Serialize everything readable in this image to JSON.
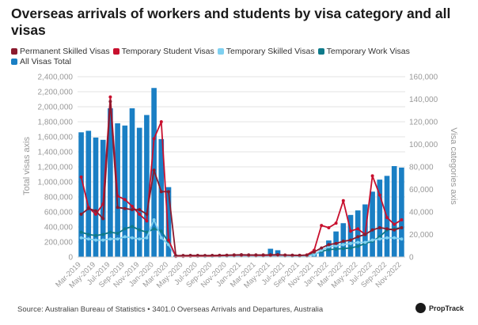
{
  "title": "Overseas arrivals of workers and students by visa category and all visas",
  "source": "Source: Australian Bureau of Statistics • 3401.0 Overseas Arrivals and Departures, Australia",
  "brand": "PropTrack",
  "chart_data": {
    "type": "bar+line",
    "title": "Overseas arrivals of workers and students by visa category and all visas",
    "y_left_label": "Total visas axis",
    "y_right_label": "Visa categories axis",
    "y_left_ticks": [
      "0",
      "200,000",
      "400,000",
      "600,000",
      "800,000",
      "1,000,000",
      "1,200,000",
      "1,400,000",
      "1,600,000",
      "1,800,000",
      "2,000,000",
      "2,200,000",
      "2,400,000"
    ],
    "y_right_ticks": [
      "0",
      "20,000",
      "40,000",
      "60,000",
      "80,000",
      "100,000",
      "120,000",
      "140,000",
      "160,000"
    ],
    "ylim_left": [
      0,
      2400000
    ],
    "ylim_right": [
      0,
      160000
    ],
    "x_tick_labels": [
      "Mar-2019",
      "May-2019",
      "Jul-2019",
      "Sep-2019",
      "Nov-2019",
      "Jan-2020",
      "Mar-2020",
      "May-2020",
      "Jul-2020",
      "Sep-2020",
      "Nov-2020",
      "Jan-2021",
      "Mar-2021",
      "May-2021",
      "Jul-2021",
      "Sep-2021",
      "Nov-2021",
      "Jan-2022",
      "Mar-2022",
      "May-2022",
      "Jul-2022",
      "Sep-2022",
      "Nov-2022"
    ],
    "months": [
      "Mar-2019",
      "Apr-2019",
      "May-2019",
      "Jun-2019",
      "Jul-2019",
      "Aug-2019",
      "Sep-2019",
      "Oct-2019",
      "Nov-2019",
      "Dec-2019",
      "Jan-2020",
      "Feb-2020",
      "Mar-2020",
      "Apr-2020",
      "May-2020",
      "Jun-2020",
      "Jul-2020",
      "Aug-2020",
      "Sep-2020",
      "Oct-2020",
      "Nov-2020",
      "Dec-2020",
      "Jan-2021",
      "Feb-2021",
      "Mar-2021",
      "Apr-2021",
      "May-2021",
      "Jun-2021",
      "Jul-2021",
      "Aug-2021",
      "Sep-2021",
      "Oct-2021",
      "Nov-2021",
      "Dec-2021",
      "Jan-2022",
      "Feb-2022",
      "Mar-2022",
      "Apr-2022",
      "May-2022",
      "Jun-2022",
      "Jul-2022",
      "Aug-2022",
      "Sep-2022",
      "Oct-2022",
      "Nov-2022"
    ],
    "bars": {
      "name": "All Visas Total",
      "axis": "left",
      "color": "#1a7fc4",
      "values": [
        1660000,
        1680000,
        1590000,
        1560000,
        1980000,
        1780000,
        1750000,
        1980000,
        1720000,
        1890000,
        2250000,
        1570000,
        930000,
        20000,
        20000,
        25000,
        25000,
        20000,
        20000,
        20000,
        25000,
        30000,
        30000,
        25000,
        25000,
        25000,
        110000,
        90000,
        30000,
        20000,
        20000,
        20000,
        40000,
        90000,
        220000,
        340000,
        450000,
        560000,
        620000,
        700000,
        870000,
        1030000,
        1080000,
        1210000,
        1190000
      ]
    },
    "series": [
      {
        "name": "Permanent Skilled Visas",
        "axis": "right",
        "color": "#8b1a2e",
        "values": [
          38000,
          43000,
          41000,
          34000,
          138000,
          44000,
          43000,
          42000,
          42000,
          38000,
          77000,
          58000,
          58000,
          1200,
          1300,
          1400,
          1400,
          1300,
          1400,
          1500,
          1600,
          1800,
          2000,
          1800,
          1800,
          1800,
          1900,
          2000,
          1700,
          1600,
          1500,
          1600,
          4500,
          8000,
          11000,
          12000,
          14000,
          15000,
          18000,
          20000,
          24000,
          26000,
          25000,
          24000,
          26000
        ]
      },
      {
        "name": "Temporary Student Visas",
        "axis": "right",
        "color": "#c8102e",
        "values": [
          71000,
          44000,
          38000,
          47000,
          142000,
          54000,
          51000,
          45000,
          38000,
          32000,
          105000,
          120000,
          15000,
          600,
          600,
          700,
          800,
          900,
          1000,
          1200,
          1400,
          1600,
          1700,
          1600,
          1500,
          1400,
          1600,
          1800,
          1700,
          1500,
          1400,
          1800,
          6000,
          28000,
          26000,
          30000,
          50000,
          23000,
          25000,
          20000,
          72000,
          55000,
          35000,
          29000,
          33000
        ]
      },
      {
        "name": "Temporary Skilled Visas",
        "axis": "right",
        "color": "#7fd0f0",
        "values": [
          17000,
          16000,
          15000,
          15000,
          16000,
          16000,
          18000,
          17000,
          16000,
          17000,
          33000,
          17000,
          11000,
          500,
          500,
          600,
          600,
          600,
          600,
          700,
          800,
          900,
          1000,
          900,
          900,
          900,
          1000,
          1100,
          900,
          800,
          800,
          900,
          2000,
          6000,
          9000,
          10000,
          11000,
          12000,
          13000,
          13000,
          15000,
          16000,
          17000,
          17000,
          16000
        ]
      },
      {
        "name": "Temporary Work Visas",
        "axis": "right",
        "color": "#0e7a8a",
        "values": [
          22000,
          20000,
          19000,
          20000,
          22000,
          21000,
          25000,
          27000,
          24000,
          22000,
          25000,
          23000,
          13000,
          600,
          600,
          700,
          700,
          600,
          700,
          700,
          800,
          900,
          1000,
          900,
          900,
          900,
          1000,
          1100,
          900,
          800,
          800,
          900,
          2500,
          5000,
          6500,
          7000,
          7500,
          8000,
          9500,
          12000,
          14000,
          18000,
          24000,
          25000,
          26000
        ]
      }
    ],
    "legend": [
      "Permanent Skilled Visas",
      "Temporary Student Visas",
      "Temporary Skilled Visas",
      "Temporary Work Visas",
      "All Visas Total"
    ],
    "legend_colors": [
      "#8b1a2e",
      "#c8102e",
      "#7fd0f0",
      "#0e7a8a",
      "#1a7fc4"
    ],
    "grid": "horizontal",
    "legend_placement": "top-left"
  }
}
